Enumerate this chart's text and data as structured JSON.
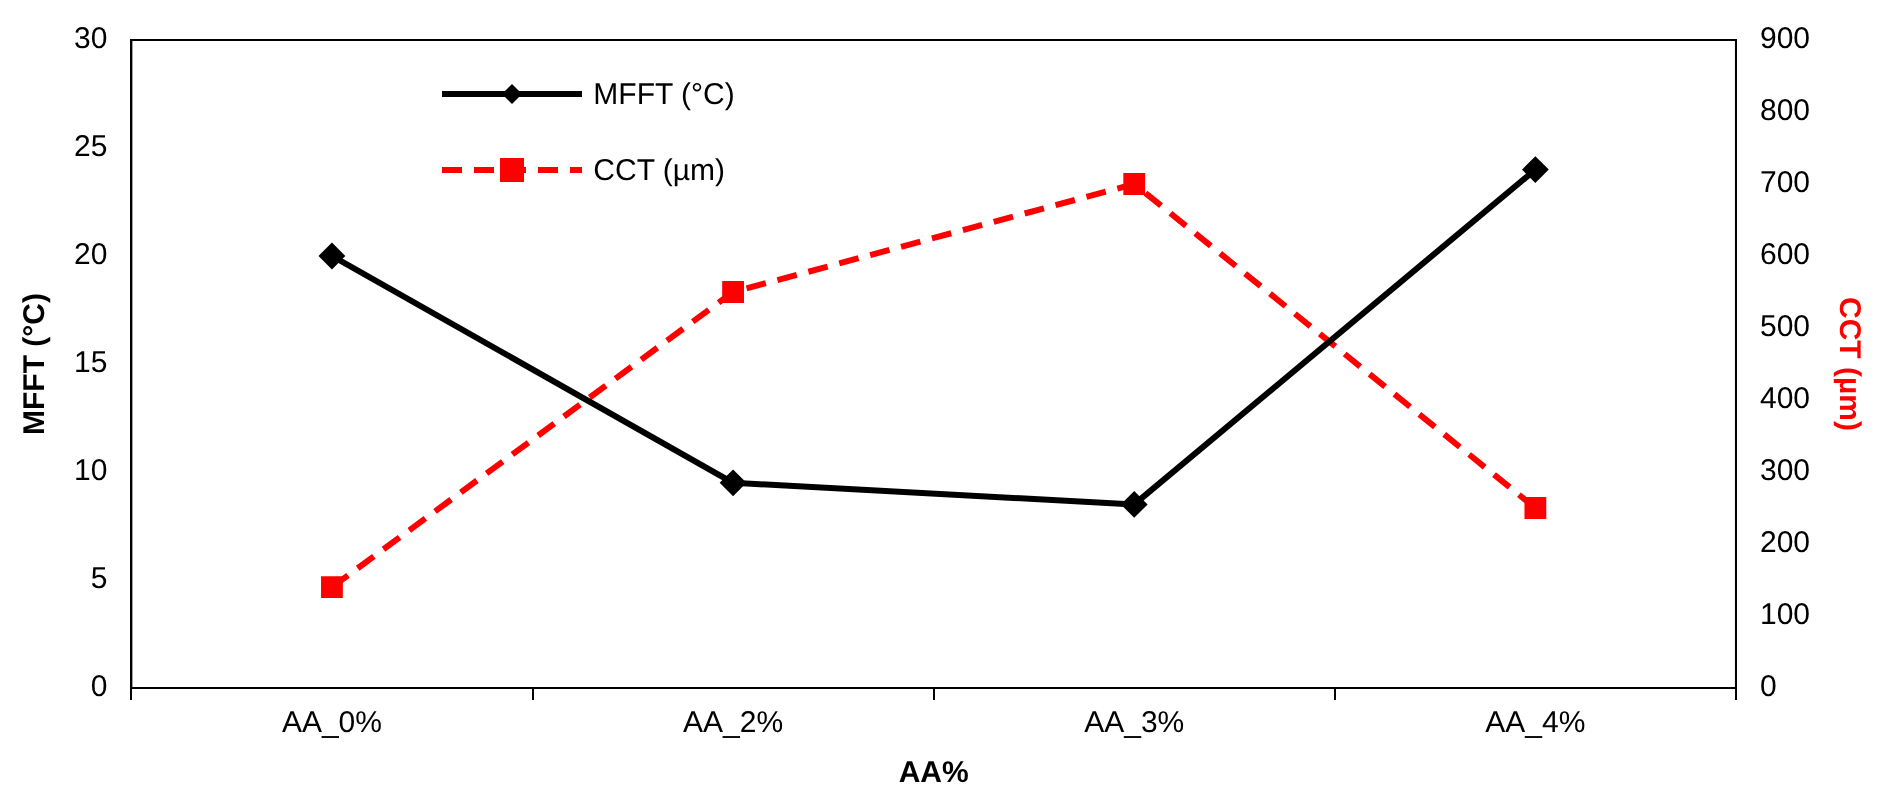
{
  "chart_data": {
    "type": "line",
    "xlabel": "AA%",
    "ylabel": "MFFT (°C)",
    "y2label": "CCT (µm)",
    "categories": [
      "AA_0%",
      "AA_2%",
      "AA_3%",
      "AA_4%"
    ],
    "series": [
      {
        "name": "MFFT (°C)",
        "color": "#000000",
        "values": [
          20,
          9.5,
          8.5,
          24
        ],
        "marker": "diamond",
        "line_style": "solid"
      },
      {
        "name": "CCT (µm)",
        "color": "#ff0000",
        "values": [
          140,
          550,
          700,
          250
        ],
        "marker": "square",
        "line_style": "dashed",
        "axis": "y2"
      }
    ],
    "ylim": [
      0,
      30
    ],
    "yticks": [
      0,
      5,
      10,
      15,
      20,
      25,
      30
    ],
    "y2lim": [
      0,
      900
    ],
    "y2ticks": [
      0,
      100,
      200,
      300,
      400,
      500,
      600,
      700,
      800,
      900
    ],
    "grid": false,
    "legend": "top left"
  }
}
